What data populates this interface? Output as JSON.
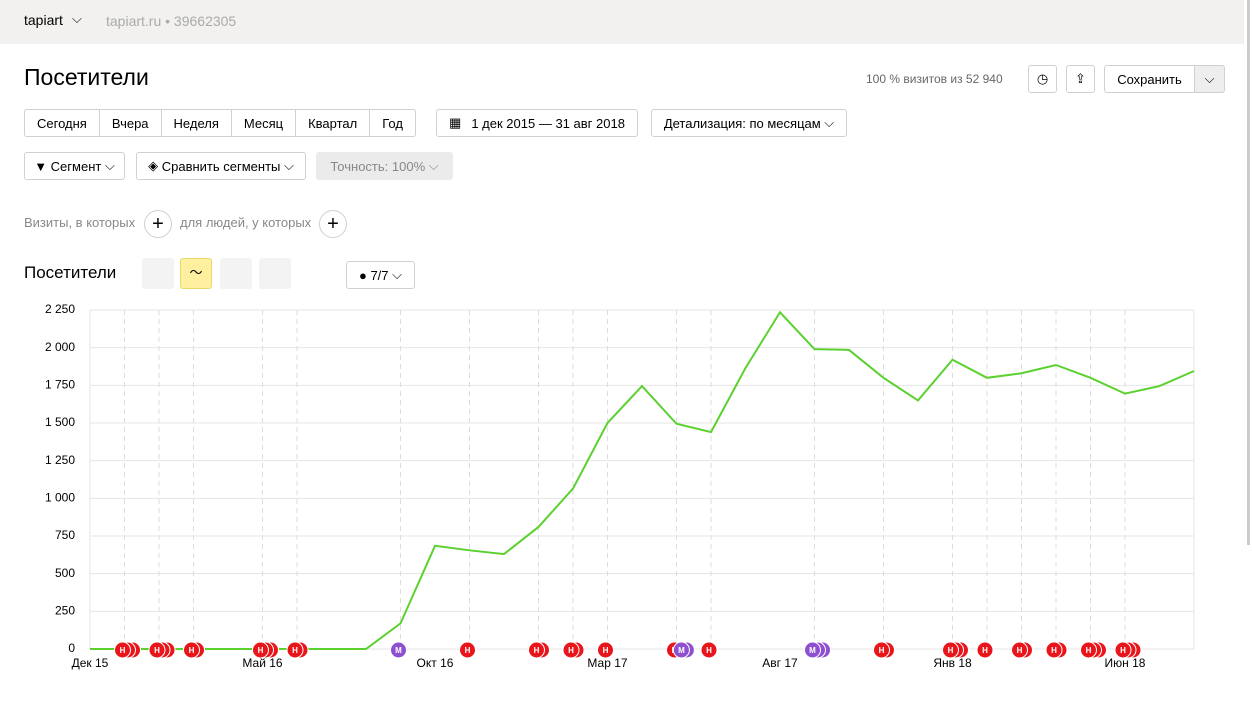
{
  "header": {
    "counter_name": "tapiart",
    "site": "tapiart.ru • 39662305"
  },
  "page": {
    "title": "Посетители",
    "sample": "100 % визитов из 52 940",
    "save": "Сохранить",
    "periods": [
      "Сегодня",
      "Вчера",
      "Неделя",
      "Месяц",
      "Квартал",
      "Год"
    ],
    "date_range": "1 дек 2015 — 31 авг 2018",
    "detail": "Детализация: по месяцам",
    "segment": "Сегмент",
    "compare": "Сравнить сегменты",
    "accuracy": "Точность: 100%",
    "visits_filter": "Визиты, в которых",
    "people_filter": "для людей, у которых",
    "chart_title": "Посетители",
    "notes_counter": "7/7"
  },
  "chart_data": {
    "type": "line",
    "categories": [
      "Дек 15",
      null,
      null,
      null,
      null,
      "Май 16",
      null,
      null,
      null,
      null,
      "Окт 16",
      null,
      null,
      null,
      null,
      "Мар 17",
      null,
      null,
      null,
      null,
      "Авг 17",
      null,
      null,
      null,
      null,
      "Янв 18",
      null,
      null,
      null,
      null,
      "Июн 18",
      null,
      null
    ],
    "values": [
      0,
      0,
      0,
      0,
      0,
      0,
      0,
      0,
      0,
      170,
      685,
      655,
      630,
      810,
      1065,
      1500,
      1745,
      1495,
      1440,
      1865,
      2235,
      1990,
      1985,
      1800,
      1650,
      1920,
      1800,
      1830,
      1885,
      1800,
      1695,
      1745,
      1845
    ],
    "color": "#5bd12f",
    "ylim": [
      0,
      2250
    ],
    "yticks": [
      0,
      250,
      500,
      750,
      {
        "value": 1000,
        "label": "1 000"
      },
      {
        "value": 1250,
        "label": "1 250"
      },
      {
        "value": 1500,
        "label": "1 500"
      },
      {
        "value": 1750,
        "label": "1 750"
      },
      {
        "value": 2000,
        "label": "2 000"
      },
      {
        "value": 2250,
        "label": "2 250"
      }
    ],
    "grid": true,
    "note_labels": [
      "Н",
      "М"
    ]
  }
}
